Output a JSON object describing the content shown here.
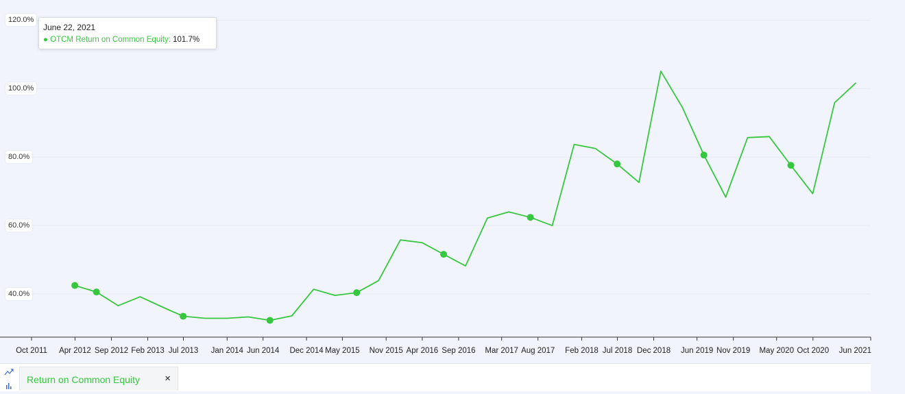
{
  "chart_data": {
    "type": "line",
    "ylim": [
      27,
      121
    ],
    "y_ticks": [
      "120.0%",
      "100.0%",
      "80.0%",
      "60.0%",
      "40.0%"
    ],
    "y_tick_values": [
      120,
      100,
      80,
      60,
      40
    ],
    "x_ticks": [
      "Oct 2011",
      "Apr 2012",
      "Sep 2012",
      "Feb 2013",
      "Jul 2013",
      "Jan 2014",
      "Jun 2014",
      "Dec 2014",
      "May 2015",
      "Nov 2015",
      "Apr 2016",
      "Sep 2016",
      "Mar 2017",
      "Aug 2017",
      "Feb 2018",
      "Jul 2018",
      "Dec 2018",
      "Jun 2019",
      "Nov 2019",
      "May 2020",
      "Oct 2020",
      "Jun 2021"
    ],
    "x_tick_dates": [
      "2011-10-01",
      "2012-04-01",
      "2012-09-01",
      "2013-02-01",
      "2013-07-01",
      "2014-01-01",
      "2014-06-01",
      "2014-12-01",
      "2015-05-01",
      "2015-11-01",
      "2016-04-01",
      "2016-09-01",
      "2017-03-01",
      "2017-08-01",
      "2018-02-01",
      "2018-07-01",
      "2018-12-01",
      "2019-06-01",
      "2019-11-01",
      "2020-05-01",
      "2020-10-01",
      "2021-06-01"
    ],
    "series": [
      {
        "name": "OTCM Return on Common Equity",
        "color": "#36c73e",
        "points": [
          {
            "x": "2012-03-31",
            "y": 42.5,
            "marker": true
          },
          {
            "x": "2012-06-30",
            "y": 40.6,
            "marker": true
          },
          {
            "x": "2012-09-30",
            "y": 36.6,
            "marker": false
          },
          {
            "x": "2012-12-31",
            "y": 39.2,
            "marker": false
          },
          {
            "x": "2013-03-31",
            "y": 36.3,
            "marker": false
          },
          {
            "x": "2013-06-30",
            "y": 33.5,
            "marker": true
          },
          {
            "x": "2013-09-30",
            "y": 32.9,
            "marker": false
          },
          {
            "x": "2013-12-31",
            "y": 32.9,
            "marker": false
          },
          {
            "x": "2014-03-31",
            "y": 33.3,
            "marker": false
          },
          {
            "x": "2014-06-30",
            "y": 32.3,
            "marker": true
          },
          {
            "x": "2014-09-30",
            "y": 33.6,
            "marker": false
          },
          {
            "x": "2014-12-31",
            "y": 41.4,
            "marker": false
          },
          {
            "x": "2015-03-31",
            "y": 39.6,
            "marker": false
          },
          {
            "x": "2015-06-30",
            "y": 40.4,
            "marker": true
          },
          {
            "x": "2015-09-30",
            "y": 43.9,
            "marker": false
          },
          {
            "x": "2015-12-31",
            "y": 55.8,
            "marker": false
          },
          {
            "x": "2016-03-31",
            "y": 55.0,
            "marker": false
          },
          {
            "x": "2016-06-30",
            "y": 51.6,
            "marker": true
          },
          {
            "x": "2016-09-30",
            "y": 48.2,
            "marker": false
          },
          {
            "x": "2016-12-31",
            "y": 62.2,
            "marker": false
          },
          {
            "x": "2017-03-31",
            "y": 64.0,
            "marker": false
          },
          {
            "x": "2017-06-30",
            "y": 62.4,
            "marker": true
          },
          {
            "x": "2017-09-30",
            "y": 60.0,
            "marker": false
          },
          {
            "x": "2017-12-31",
            "y": 83.7,
            "marker": false
          },
          {
            "x": "2018-03-31",
            "y": 82.5,
            "marker": false
          },
          {
            "x": "2018-06-30",
            "y": 78.0,
            "marker": true
          },
          {
            "x": "2018-09-30",
            "y": 72.6,
            "marker": false
          },
          {
            "x": "2018-12-31",
            "y": 105.1,
            "marker": false
          },
          {
            "x": "2019-03-31",
            "y": 94.6,
            "marker": false
          },
          {
            "x": "2019-06-30",
            "y": 80.6,
            "marker": true
          },
          {
            "x": "2019-09-30",
            "y": 68.3,
            "marker": false
          },
          {
            "x": "2019-12-31",
            "y": 85.7,
            "marker": false
          },
          {
            "x": "2020-03-31",
            "y": 86.0,
            "marker": false
          },
          {
            "x": "2020-06-30",
            "y": 77.6,
            "marker": true
          },
          {
            "x": "2020-09-30",
            "y": 69.3,
            "marker": false
          },
          {
            "x": "2020-12-31",
            "y": 95.9,
            "marker": false
          },
          {
            "x": "2021-03-31",
            "y": 101.7,
            "marker": false
          }
        ]
      }
    ],
    "grid": true
  },
  "tooltip": {
    "date": "June 22, 2021",
    "series": "OTCM Return on Common Equity",
    "separator": ": ",
    "value": "101.7%"
  },
  "legend": {
    "label": "Return on Common Equity",
    "close": "×"
  },
  "icons": {
    "line_chart": "line-chart-icon",
    "bar_chart": "bar-chart-icon"
  },
  "colors": {
    "series": "#36c73e",
    "background": "#f1f4fc",
    "grid": "#e6e9f2"
  }
}
